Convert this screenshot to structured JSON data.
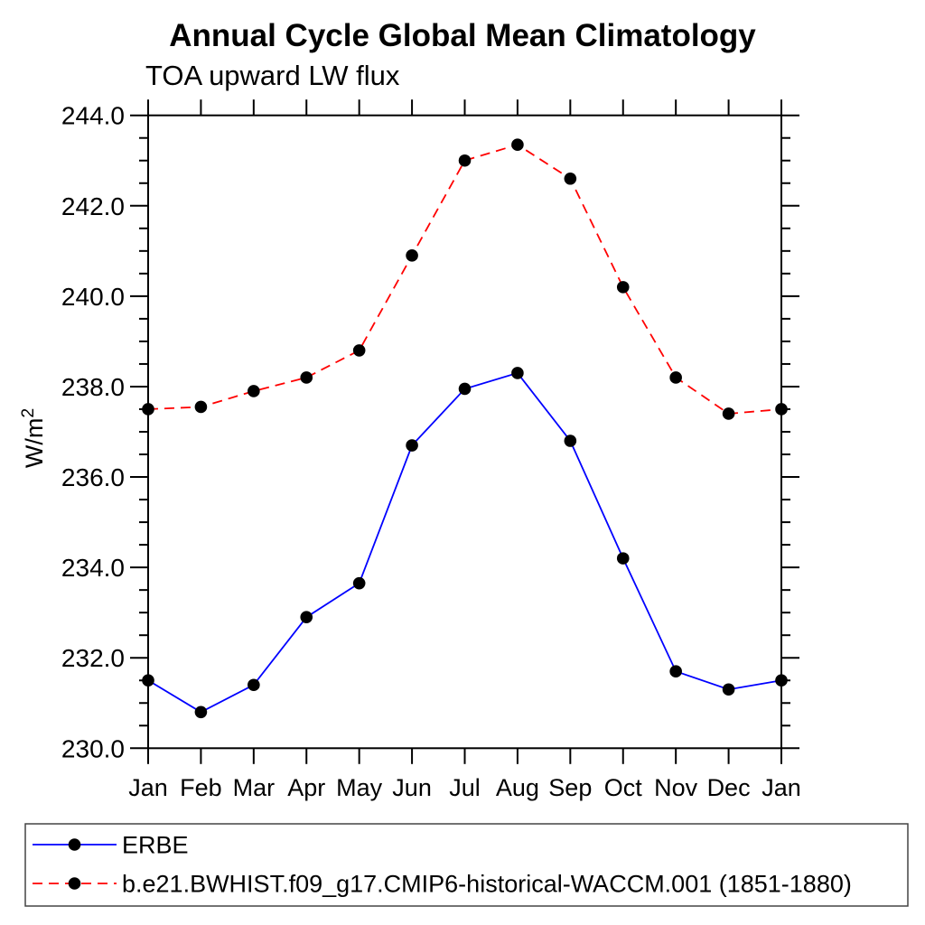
{
  "chart_data": {
    "type": "line",
    "title": "Annual Cycle Global Mean Climatology",
    "subtitle": "TOA upward LW flux",
    "ylabel": "W/m²",
    "ylabel_main": "W/m",
    "ylabel_sup": "2",
    "categories": [
      "Jan",
      "Feb",
      "Mar",
      "Apr",
      "May",
      "Jun",
      "Jul",
      "Aug",
      "Sep",
      "Oct",
      "Nov",
      "Dec",
      "Jan"
    ],
    "ylim": [
      230.0,
      244.0
    ],
    "ytick_major_step": 2.0,
    "ytick_minor_step": 0.5,
    "ytick_label_decimals": 1,
    "grid": false,
    "legend_position": "bottom-box",
    "axis_color": "#000000",
    "text_color": "#000000",
    "background_color": "#ffffff",
    "series": [
      {
        "name": "ERBE",
        "line_color": "#0000ff",
        "line_style": "solid",
        "marker": "filled-circle",
        "marker_color": "#000000",
        "values": [
          231.5,
          230.8,
          231.4,
          232.9,
          233.65,
          236.7,
          237.95,
          238.3,
          236.8,
          234.2,
          231.7,
          231.3,
          231.5
        ]
      },
      {
        "name": "b.e21.BWHIST.f09_g17.CMIP6-historical-WACCM.001 (1851-1880)",
        "line_color": "#ff0000",
        "line_style": "dashed",
        "marker": "filled-circle",
        "marker_color": "#000000",
        "values": [
          237.5,
          237.55,
          237.9,
          238.2,
          238.8,
          240.9,
          243.0,
          243.35,
          242.6,
          240.2,
          238.2,
          237.4,
          237.5
        ]
      }
    ]
  }
}
